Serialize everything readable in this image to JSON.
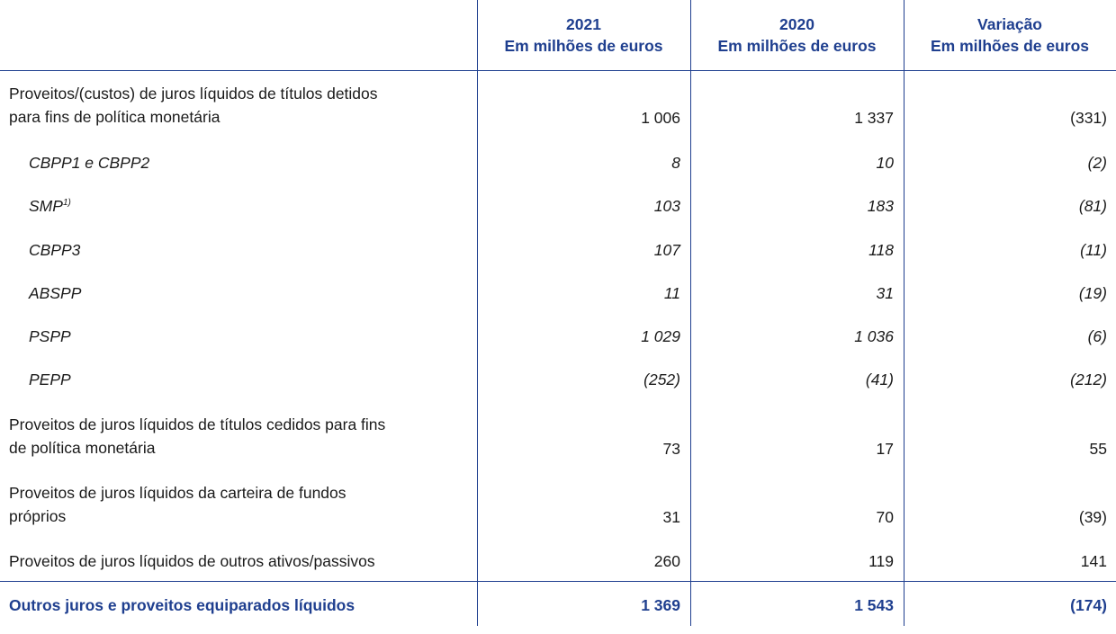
{
  "header": {
    "col1_year": "2021",
    "col1_unit": "Em milhões de euros",
    "col2_year": "2020",
    "col2_unit": "Em milhões de euros",
    "col3_title": "Variação",
    "col3_unit": "Em milhões de euros"
  },
  "rows": [
    {
      "label_line1": "Proveitos/(custos) de juros líquidos de títulos detidos",
      "label_line2": "para fins de política monetária",
      "v2021": "1 006",
      "v2020": "1 337",
      "change": "(331)"
    },
    {
      "label": "CBPP1 e CBPP2",
      "v2021": "8",
      "v2020": "10",
      "change": "(2)"
    },
    {
      "label": "SMP",
      "footnote": "1)",
      "v2021": "103",
      "v2020": "183",
      "change": "(81)"
    },
    {
      "label": "CBPP3",
      "v2021": "107",
      "v2020": "118",
      "change": "(11)"
    },
    {
      "label": "ABSPP",
      "v2021": "11",
      "v2020": "31",
      "change": "(19)"
    },
    {
      "label": "PSPP",
      "v2021": "1 029",
      "v2020": "1 036",
      "change": "(6)"
    },
    {
      "label": "PEPP",
      "v2021": "(252)",
      "v2020": "(41)",
      "change": "(212)"
    },
    {
      "label_line1": "Proveitos de juros líquidos de títulos cedidos para fins",
      "label_line2": "de política monetária",
      "v2021": "73",
      "v2020": "17",
      "change": "55"
    },
    {
      "label_line1": "Proveitos de juros líquidos da carteira de fundos",
      "label_line2": "próprios",
      "v2021": "31",
      "v2020": "70",
      "change": "(39)"
    },
    {
      "label": "Proveitos de juros líquidos de outros ativos/passivos",
      "v2021": "260",
      "v2020": "119",
      "change": "141"
    }
  ],
  "total": {
    "label": "Outros juros e proveitos equiparados líquidos",
    "v2021": "1 369",
    "v2020": "1 543",
    "change": "(174)"
  },
  "colors": {
    "accent": "#1f3f8f",
    "text": "#1a1a1a"
  }
}
